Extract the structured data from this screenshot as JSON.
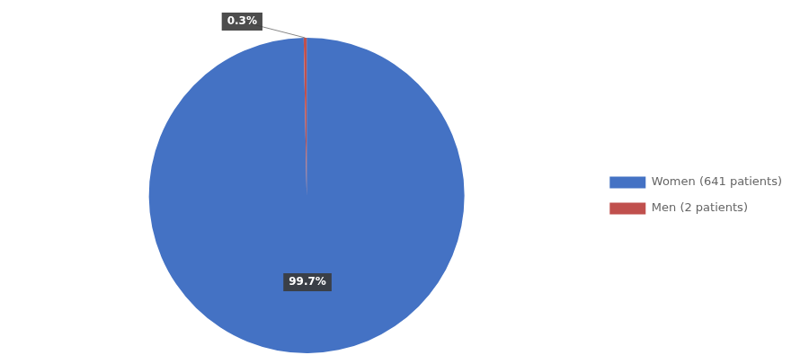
{
  "chart_data": {
    "type": "pie",
    "categories": [
      "Women (641 patients)",
      "Men (2 patients)"
    ],
    "values": [
      99.7,
      0.3
    ],
    "value_labels": [
      "99.7%",
      "0.3%"
    ],
    "colors": [
      "#4472C4",
      "#C0504D"
    ],
    "data_labels": true,
    "legend": "right"
  }
}
